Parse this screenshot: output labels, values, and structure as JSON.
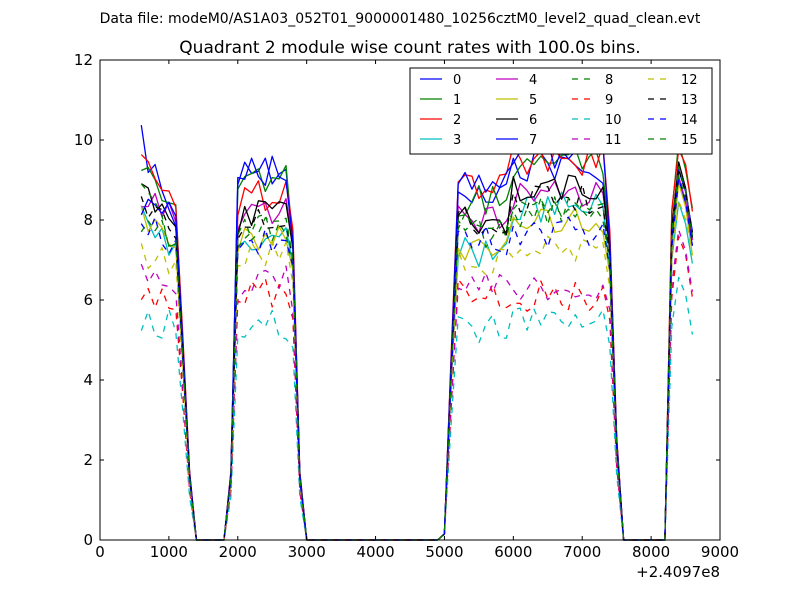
{
  "suptitle": "Data file: modeM0/AS1A03_052T01_9000001480_10256cztM0_level2_quad_clean.evt",
  "chart_data": {
    "type": "line",
    "title": "Quadrant 2 module wise count rates with 100.0s bins.",
    "xlabel": "",
    "ylabel": "",
    "x_offset_label": "+2.4097e8",
    "xlim": [
      0,
      9000
    ],
    "ylim": [
      0,
      12
    ],
    "xticks": [
      0,
      1000,
      2000,
      3000,
      4000,
      5000,
      6000,
      7000,
      8000,
      9000
    ],
    "yticks": [
      0,
      2,
      4,
      6,
      8,
      10,
      12
    ],
    "legend_position": "top-right",
    "legend_columns": 4,
    "segments": [
      {
        "start": 600,
        "step": 100,
        "count": 11
      },
      {
        "start": 1700,
        "step": 100,
        "count": 3
      },
      {
        "start": 1900,
        "step": 100,
        "count": 11
      },
      {
        "start": 3000,
        "step": 100,
        "count": 20
      },
      {
        "start": 5000,
        "step": 100,
        "count": 26
      },
      {
        "start": 7600,
        "step": 100,
        "count": 7
      },
      {
        "start": 8300,
        "step": 100,
        "count": 4
      }
    ],
    "series": [
      {
        "name": "0",
        "color": "#0000ff",
        "dash": "solid",
        "level": 8.1,
        "p1": 10.0,
        "p2": 9.3,
        "p3": 8.7,
        "p4": 9.3,
        "p5": 7.8
      },
      {
        "name": "1",
        "color": "#008000",
        "dash": "solid",
        "level": 8.4,
        "p1": 9.6,
        "p2": 9.0,
        "p3": 8.5,
        "p4": 9.4,
        "p5": 8.6
      },
      {
        "name": "2",
        "color": "#ff0000",
        "dash": "solid",
        "level": 8.6,
        "p1": 9.8,
        "p2": 8.6,
        "p3": 8.8,
        "p4": 9.5,
        "p5": 8.7
      },
      {
        "name": "3",
        "color": "#00bfbf",
        "dash": "solid",
        "level": 7.5,
        "p1": 8.0,
        "p2": 7.5,
        "p3": 7.2,
        "p4": 8.3,
        "p5": 7.3
      },
      {
        "name": "4",
        "color": "#bf00bf",
        "dash": "solid",
        "level": 8.2,
        "p1": 8.7,
        "p2": 8.2,
        "p3": 8.0,
        "p4": 8.7,
        "p5": 8.0
      },
      {
        "name": "5",
        "color": "#bfbf00",
        "dash": "solid",
        "level": 7.4,
        "p1": 8.1,
        "p2": 7.6,
        "p3": 7.4,
        "p4": 8.0,
        "p5": 7.6
      },
      {
        "name": "6",
        "color": "#000000",
        "dash": "solid",
        "level": 8.0,
        "p1": 8.7,
        "p2": 8.1,
        "p3": 8.0,
        "p4": 8.8,
        "p5": 8.1
      },
      {
        "name": "7",
        "color": "#0000ff",
        "dash": "solid",
        "level": 8.3,
        "p1": 8.4,
        "p2": 9.2,
        "p3": 8.9,
        "p4": 9.7,
        "p5": 8.0
      },
      {
        "name": "8",
        "color": "#008000",
        "dash": "dashed",
        "level": 7.6,
        "p1": 8.6,
        "p2": 7.8,
        "p3": 7.7,
        "p4": 8.3,
        "p5": 8.0
      },
      {
        "name": "9",
        "color": "#ff0000",
        "dash": "dashed",
        "level": 6.1,
        "p1": 6.2,
        "p2": 6.2,
        "p3": 6.2,
        "p4": 6.1,
        "p5": 6.4
      },
      {
        "name": "10",
        "color": "#00bfbf",
        "dash": "dashed",
        "level": 5.4,
        "p1": 5.4,
        "p2": 5.4,
        "p3": 5.3,
        "p4": 5.5,
        "p5": 5.5
      },
      {
        "name": "11",
        "color": "#bf00bf",
        "dash": "dashed",
        "level": 6.4,
        "p1": 6.6,
        "p2": 6.5,
        "p3": 6.4,
        "p4": 6.3,
        "p5": 6.7
      },
      {
        "name": "12",
        "color": "#bfbf00",
        "dash": "dashed",
        "level": 7.0,
        "p1": 7.2,
        "p2": 7.1,
        "p3": 7.0,
        "p4": 7.2,
        "p5": 7.4
      },
      {
        "name": "13",
        "color": "#000000",
        "dash": "dashed",
        "level": 7.9,
        "p1": 8.3,
        "p2": 8.0,
        "p3": 7.9,
        "p4": 8.5,
        "p5": 8.1
      },
      {
        "name": "14",
        "color": "#0000ff",
        "dash": "dashed",
        "level": 7.5,
        "p1": 7.9,
        "p2": 7.5,
        "p3": 7.5,
        "p4": 7.7,
        "p5": 7.7
      },
      {
        "name": "15",
        "color": "#008000",
        "dash": "dashed",
        "level": 7.7,
        "p1": 8.1,
        "p2": 7.9,
        "p3": 7.9,
        "p4": 8.2,
        "p5": 8.0
      }
    ]
  }
}
